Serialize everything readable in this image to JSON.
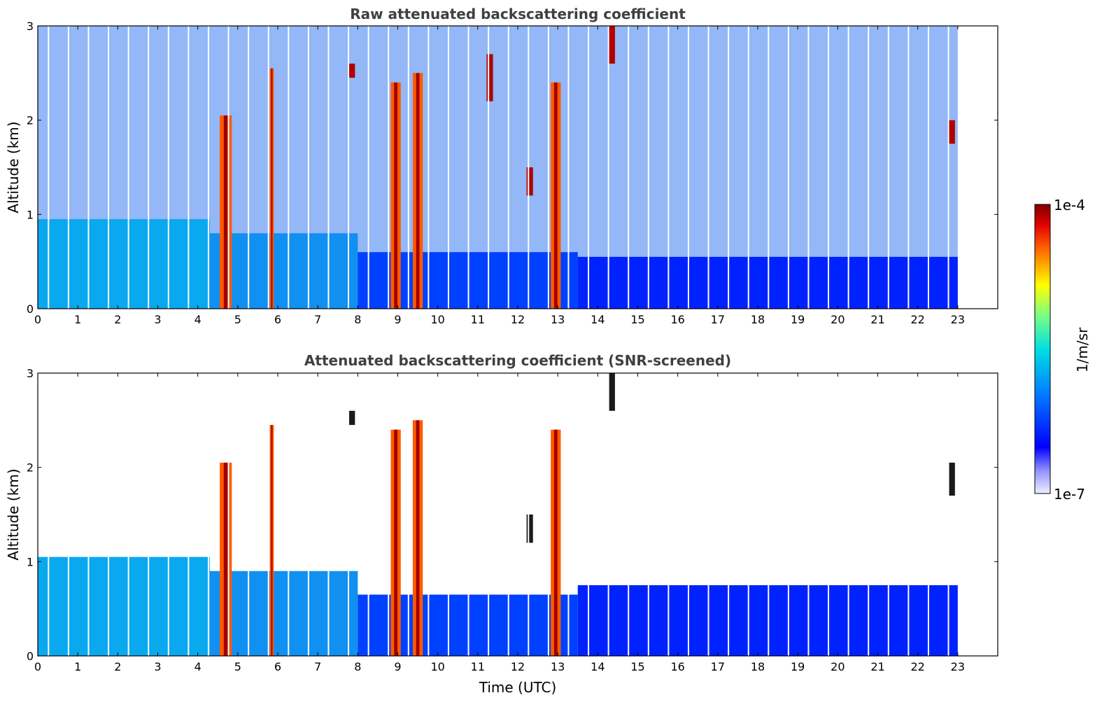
{
  "chart_data": [
    {
      "type": "heatmap",
      "title": "Raw attenuated backscattering coefficient",
      "xlabel": "",
      "ylabel": "Altitude (km)",
      "xlim": [
        0,
        24
      ],
      "ylim": [
        0,
        3
      ],
      "x_ticks": [
        0,
        1,
        2,
        3,
        4,
        5,
        6,
        7,
        8,
        9,
        10,
        11,
        12,
        13,
        14,
        15,
        16,
        17,
        18,
        19,
        20,
        21,
        22,
        23
      ],
      "y_ticks": [
        0,
        1,
        2,
        3
      ],
      "data_end_time": 23,
      "features": [
        {
          "kind": "boundary_layer",
          "start": 0,
          "end": 4.3,
          "top_km": 0.95
        },
        {
          "kind": "boundary_layer",
          "start": 4.3,
          "end": 8.0,
          "top_km": 0.8
        },
        {
          "kind": "boundary_layer",
          "start": 8.0,
          "end": 13.5,
          "top_km": 0.6
        },
        {
          "kind": "boundary_layer",
          "start": 13.5,
          "end": 23.0,
          "top_km": 0.55
        },
        {
          "kind": "cloud_column",
          "time": 4.7,
          "bottom_km": 0,
          "top_km": 2.05,
          "width_h": 0.3
        },
        {
          "kind": "cloud_column",
          "time": 5.85,
          "bottom_km": 0,
          "top_km": 2.55,
          "width_h": 0.1
        },
        {
          "kind": "cloud_column",
          "time": 8.95,
          "bottom_km": 0,
          "top_km": 2.4,
          "width_h": 0.25
        },
        {
          "kind": "cloud_column",
          "time": 9.5,
          "bottom_km": 0,
          "top_km": 2.5,
          "width_h": 0.25
        },
        {
          "kind": "cloud_column",
          "time": 12.95,
          "bottom_km": 0,
          "top_km": 2.4,
          "width_h": 0.25
        },
        {
          "kind": "cloud_patch",
          "time": 7.85,
          "bottom_km": 2.45,
          "top_km": 2.6
        },
        {
          "kind": "cloud_patch",
          "time": 14.35,
          "bottom_km": 2.6,
          "top_km": 3.0
        },
        {
          "kind": "cloud_patch",
          "time": 12.3,
          "bottom_km": 1.2,
          "top_km": 1.5
        },
        {
          "kind": "cloud_patch",
          "time": 22.85,
          "bottom_km": 1.75,
          "top_km": 2.0
        },
        {
          "kind": "cloud_patch",
          "time": 11.3,
          "bottom_km": 2.2,
          "top_km": 2.7
        }
      ]
    },
    {
      "type": "heatmap",
      "title": "Attenuated backscattering coefficient (SNR-screened)",
      "xlabel": "Time (UTC)",
      "ylabel": "Altitude (km)",
      "xlim": [
        0,
        24
      ],
      "ylim": [
        0,
        3
      ],
      "x_ticks": [
        0,
        1,
        2,
        3,
        4,
        5,
        6,
        7,
        8,
        9,
        10,
        11,
        12,
        13,
        14,
        15,
        16,
        17,
        18,
        19,
        20,
        21,
        22,
        23
      ],
      "y_ticks": [
        0,
        1,
        2,
        3
      ],
      "data_end_time": 23,
      "features": [
        {
          "kind": "boundary_layer",
          "start": 0,
          "end": 4.3,
          "top_km": 1.05
        },
        {
          "kind": "boundary_layer",
          "start": 4.3,
          "end": 8.0,
          "top_km": 0.9
        },
        {
          "kind": "boundary_layer",
          "start": 8.0,
          "end": 13.5,
          "top_km": 0.65
        },
        {
          "kind": "boundary_layer",
          "start": 13.5,
          "end": 23.0,
          "top_km": 0.75
        },
        {
          "kind": "cloud_column",
          "time": 4.7,
          "bottom_km": 0,
          "top_km": 2.05,
          "width_h": 0.3
        },
        {
          "kind": "cloud_column",
          "time": 5.85,
          "bottom_km": 0,
          "top_km": 2.45,
          "width_h": 0.1
        },
        {
          "kind": "cloud_column",
          "time": 8.95,
          "bottom_km": 0,
          "top_km": 2.4,
          "width_h": 0.25
        },
        {
          "kind": "cloud_column",
          "time": 9.5,
          "bottom_km": 0,
          "top_km": 2.5,
          "width_h": 0.25
        },
        {
          "kind": "cloud_column",
          "time": 12.95,
          "bottom_km": 0,
          "top_km": 2.4,
          "width_h": 0.25
        },
        {
          "kind": "cloud_patch",
          "time": 7.85,
          "bottom_km": 2.45,
          "top_km": 2.6
        },
        {
          "kind": "cloud_patch",
          "time": 14.35,
          "bottom_km": 2.6,
          "top_km": 3.0
        },
        {
          "kind": "cloud_patch",
          "time": 12.3,
          "bottom_km": 1.2,
          "top_km": 1.5
        },
        {
          "kind": "cloud_patch",
          "time": 22.85,
          "bottom_km": 1.7,
          "top_km": 2.05
        }
      ]
    }
  ],
  "colorbar": {
    "label": "1/m/sr",
    "max_label": "1e-4",
    "min_label": "1e-7",
    "scale": "log",
    "colormap": "jet"
  }
}
